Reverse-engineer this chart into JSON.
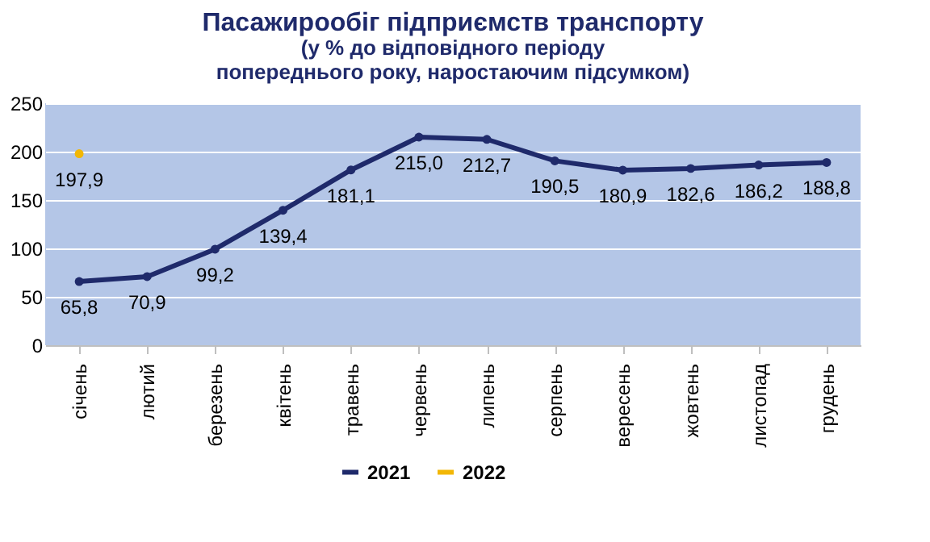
{
  "chart_data": {
    "type": "line",
    "title": "Пасажирообіг підприємств  транспорту",
    "subtitle": "(у % до відповідного  періоду\nпопереднього року, наростаючим підсумком)",
    "categories": [
      "січень",
      "лютий",
      "березень",
      "квітень",
      "травень",
      "червень",
      "липень",
      "серпень",
      "вересень",
      "жовтень",
      "листопад",
      "грудень"
    ],
    "series": [
      {
        "name": "2021",
        "color": "#1f2a6b",
        "values": [
          65.8,
          70.9,
          99.2,
          139.4,
          181.1,
          215.0,
          212.7,
          190.5,
          180.9,
          182.6,
          186.2,
          188.8
        ],
        "value_labels": [
          "65,8",
          "70,9",
          "99,2",
          "139,4",
          "181,1",
          "215,0",
          "212,7",
          "190,5",
          "180,9",
          "182,6",
          "186,2",
          "188,8"
        ]
      },
      {
        "name": "2022",
        "color": "#f2b705",
        "values": [
          197.9,
          null,
          null,
          null,
          null,
          null,
          null,
          null,
          null,
          null,
          null,
          null
        ],
        "value_labels": [
          "197,9",
          null,
          null,
          null,
          null,
          null,
          null,
          null,
          null,
          null,
          null,
          null
        ]
      }
    ],
    "ylim": [
      0,
      250
    ],
    "yticks": [
      0,
      50,
      100,
      150,
      200,
      250
    ],
    "grid": "y",
    "legend": "bottom",
    "marker": "circle",
    "line_style": "solid"
  }
}
